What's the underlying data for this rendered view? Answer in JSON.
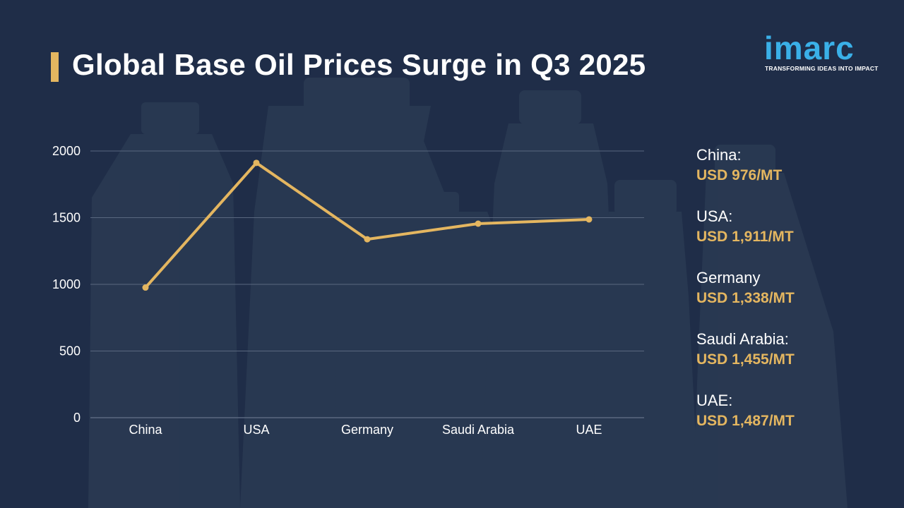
{
  "title": "Global Base Oil Prices Surge in Q3 2025",
  "logo": {
    "name": "imarc",
    "tagline": "TRANSFORMING IDEAS INTO IMPACT"
  },
  "colors": {
    "background": "#1f2d48",
    "accent": "#e4b660",
    "line": "#e4b660",
    "grid": "#5a6880",
    "brand_blue": "#3ab0e8"
  },
  "chart_data": {
    "type": "line",
    "title": "",
    "xlabel": "",
    "ylabel": "",
    "categories": [
      "China",
      "USA",
      "Germany",
      "Saudi Arabia",
      "UAE"
    ],
    "values": [
      976,
      1911,
      1338,
      1455,
      1487
    ],
    "ylim": [
      0,
      2000
    ],
    "yticks": [
      "0",
      "500",
      "1000",
      "1500",
      "2000"
    ],
    "grid": true,
    "line_color": "#e4b660"
  },
  "legend": [
    {
      "country": "China:",
      "price": "USD 976/MT"
    },
    {
      "country": "USA:",
      "price": "USD 1,911/MT"
    },
    {
      "country": "Germany",
      "price": "USD 1,338/MT"
    },
    {
      "country": "Saudi Arabia:",
      "price": "USD 1,455/MT"
    },
    {
      "country": "UAE:",
      "price": "USD 1,487/MT"
    }
  ]
}
